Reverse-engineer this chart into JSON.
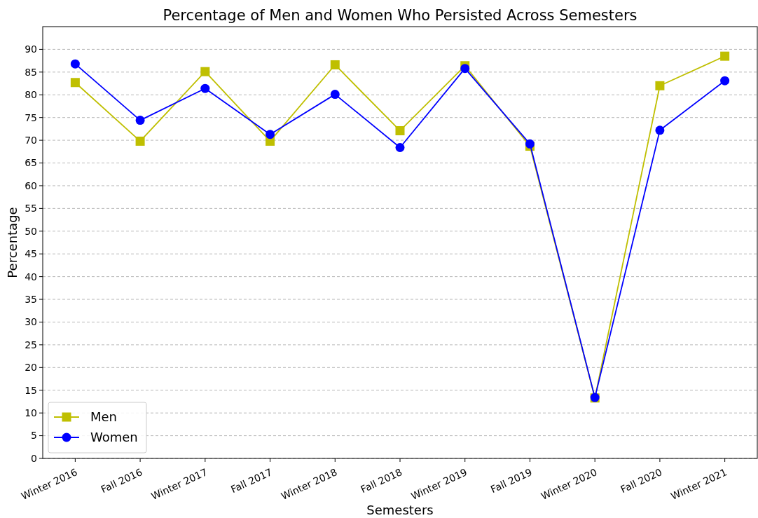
{
  "chart_data": {
    "type": "line",
    "title": "Percentage of Men and Women Who Persisted Across Semesters",
    "xlabel": "Semesters",
    "ylabel": "Percentage",
    "categories": [
      "Winter 2016",
      "Fall 2016",
      "Winter 2017",
      "Fall 2017",
      "Winter 2018",
      "Fall 2018",
      "Winter 2019",
      "Fall 2019",
      "Winter 2020",
      "Fall 2020",
      "Winter 2021"
    ],
    "series": [
      {
        "name": "Men",
        "color": "#bfbf00",
        "marker": "square",
        "values": [
          82.7,
          69.8,
          85.1,
          69.8,
          86.6,
          72.1,
          86.4,
          68.7,
          13.3,
          82.0,
          88.5
        ]
      },
      {
        "name": "Women",
        "color": "#0000ff",
        "marker": "circle",
        "values": [
          86.8,
          74.4,
          81.4,
          71.3,
          80.1,
          68.4,
          85.8,
          69.2,
          13.4,
          72.2,
          83.1
        ]
      }
    ],
    "ylim": [
      0,
      95
    ],
    "yticks": [
      0,
      5,
      10,
      15,
      20,
      25,
      30,
      35,
      40,
      45,
      50,
      55,
      60,
      65,
      70,
      75,
      80,
      85,
      90
    ],
    "grid": "y",
    "legend": "bottom left"
  }
}
